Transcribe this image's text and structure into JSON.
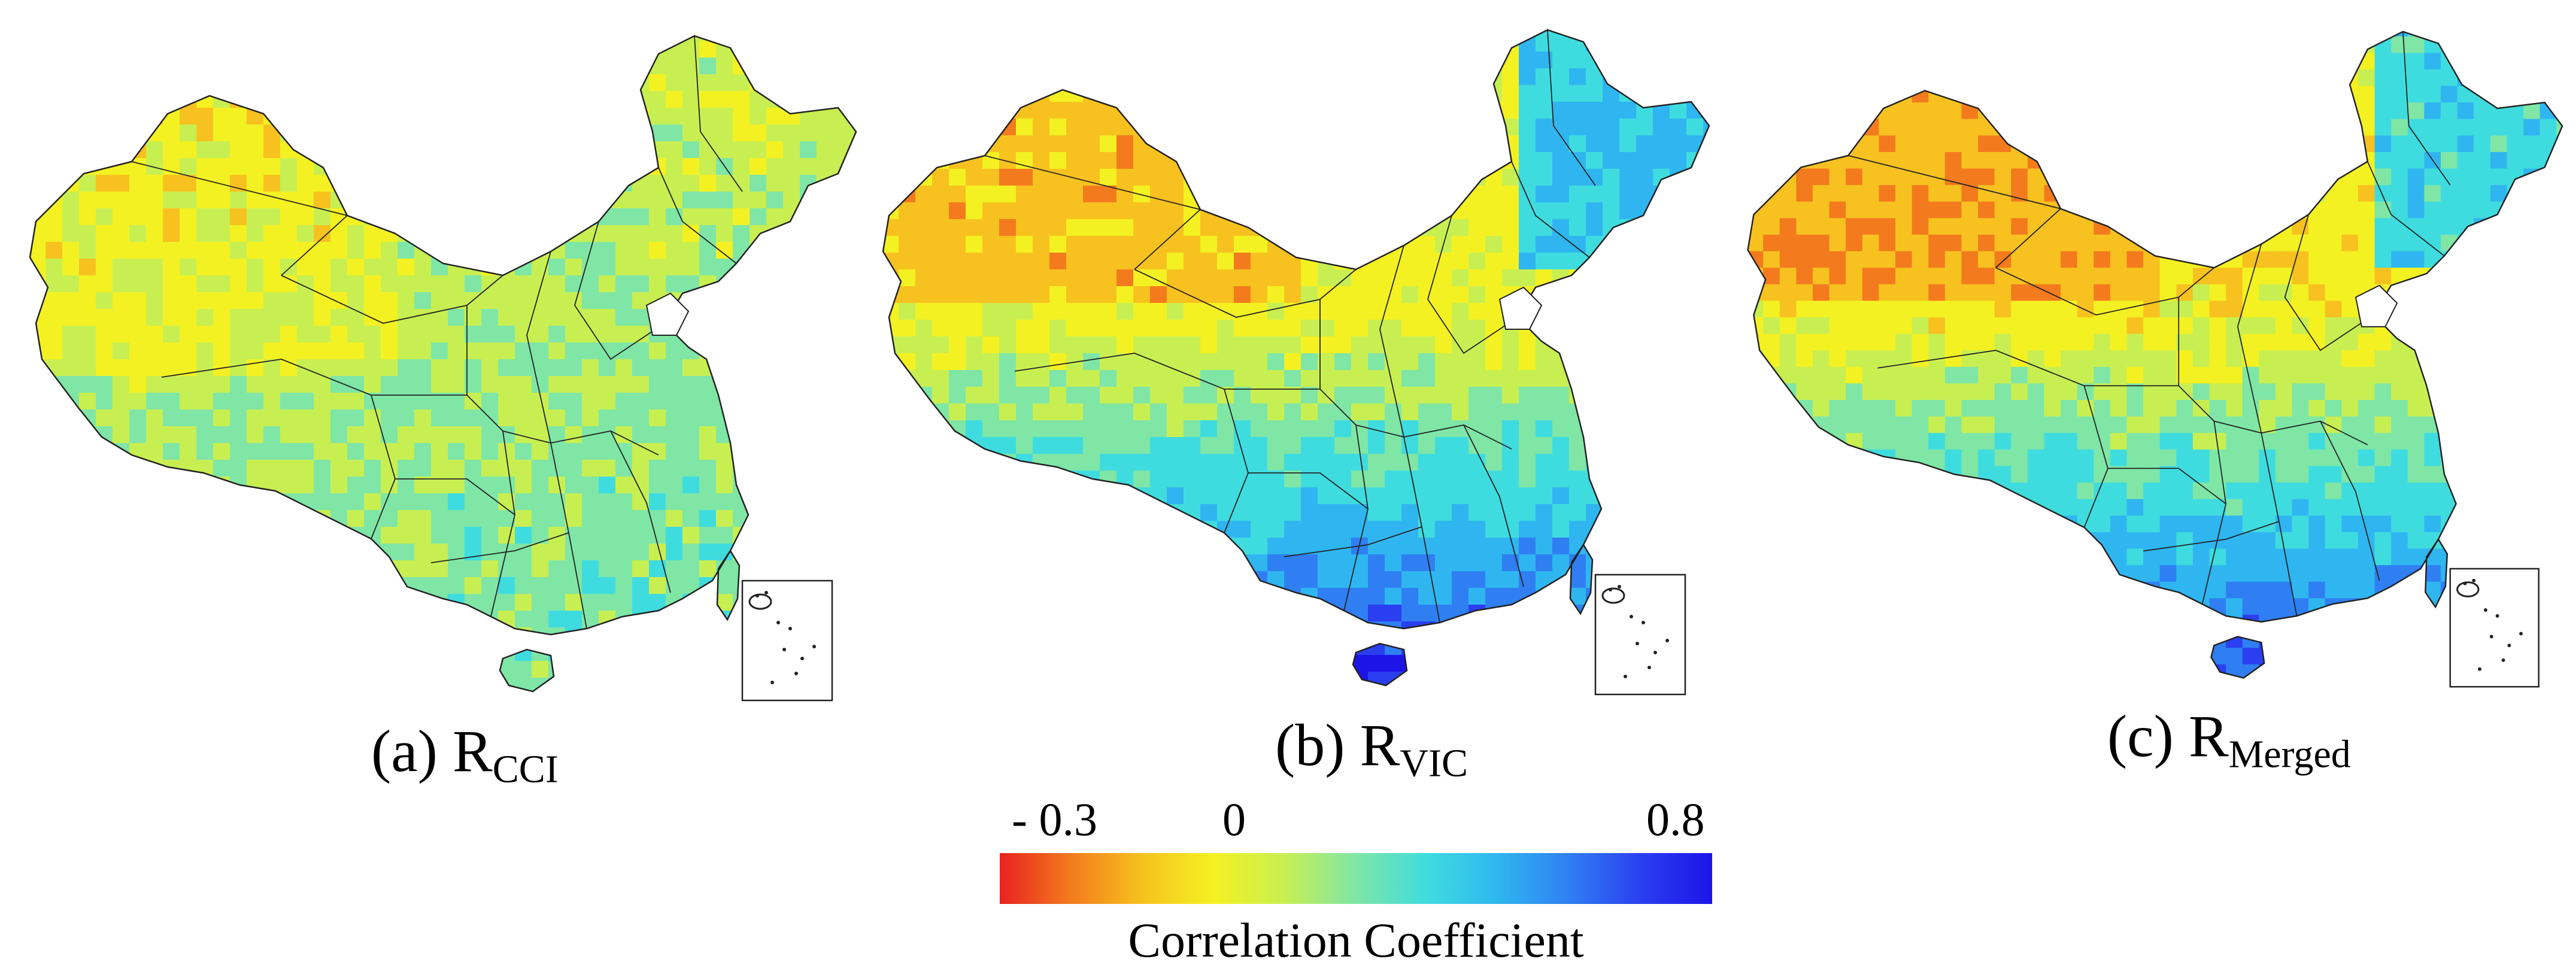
{
  "panels": [
    {
      "id": "a",
      "caption_main": "(a) R",
      "caption_sub": "CCI",
      "scheme": "cci",
      "map_label": "China correlation map, R CCI"
    },
    {
      "id": "b",
      "caption_main": "(b) R",
      "caption_sub": "VIC",
      "scheme": "vic",
      "map_label": "China correlation map, R VIC"
    },
    {
      "id": "c",
      "caption_main": "(c) R",
      "caption_sub": "Merged",
      "scheme": "merged",
      "map_label": "China correlation map, R Merged"
    }
  ],
  "legend": {
    "min_label": "- 0.3",
    "zero_label": "0",
    "max_label": "0.8",
    "min_value": -0.3,
    "max_value": 0.8,
    "zero_value": 0,
    "title": "Correlation Coefficient",
    "colors": [
      "#e8231f",
      "#f37b1e",
      "#f7c21f",
      "#f4f122",
      "#c8ef52",
      "#7fe6a6",
      "#3fdcdf",
      "#2fb6f0",
      "#2f7ff2",
      "#2a3ff0",
      "#1d14e8"
    ]
  },
  "palette": {
    "red": "#e8302a",
    "orange": "#f6a21f",
    "yellow": "#eff03a",
    "lightyellow": "#d7ec4f",
    "green": "#9be37f",
    "cyan": "#55d8d8",
    "sky": "#3cb4ef",
    "blue": "#2f7bf0",
    "deepblue": "#2a4ae8",
    "border": "#222222"
  }
}
